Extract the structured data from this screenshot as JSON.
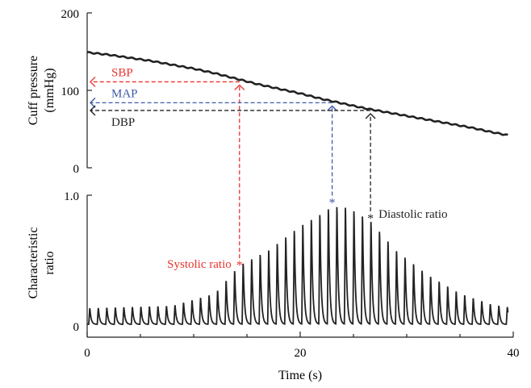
{
  "chart_data": [
    {
      "type": "line",
      "ylabel_line1": "Cuff pressure",
      "ylabel_line2": "(mmHg)",
      "ylim": [
        0,
        200
      ],
      "yticks": [
        "0",
        "100",
        "200"
      ],
      "xlim": [
        0,
        40
      ],
      "series": [
        {
          "x": [
            0,
            2,
            4,
            6,
            8,
            10,
            12,
            14,
            16,
            18,
            20,
            22,
            24,
            26,
            28,
            30,
            32,
            34,
            36,
            38,
            39.5
          ],
          "y": [
            149,
            146,
            142,
            138,
            133,
            128,
            122,
            115,
            108,
            102,
            96,
            89,
            83,
            77,
            72,
            67,
            62,
            57,
            52,
            46,
            42
          ]
        }
      ],
      "markers": [
        {
          "label": "SBP",
          "color": "#e8332f",
          "x": 14.3,
          "y": 111
        },
        {
          "label": "MAP",
          "color": "#3f5aa8",
          "x": 23.0,
          "y": 84
        },
        {
          "label": "DBP",
          "color": "#222222",
          "x": 26.6,
          "y": 74
        }
      ]
    },
    {
      "type": "line",
      "ylabel_line1": "Characteristic",
      "ylabel_line2": "ratio",
      "xlabel": "Time (s)",
      "ylim": [
        0,
        1.0
      ],
      "yticks": [
        "0",
        "1.0"
      ],
      "xlim": [
        0,
        40
      ],
      "xticks": [
        "0",
        "20",
        "40"
      ],
      "envelope": {
        "x": [
          0,
          8,
          12,
          14.3,
          17,
          20,
          22,
          23,
          24.5,
          26.6,
          29,
          32,
          35,
          38,
          39.5
        ],
        "y": [
          0.13,
          0.15,
          0.25,
          0.48,
          0.6,
          0.8,
          0.9,
          0.96,
          0.95,
          0.84,
          0.6,
          0.4,
          0.25,
          0.16,
          0.14
        ]
      },
      "beat_period_s": 0.8,
      "markers": [
        {
          "label": "Systolic ratio",
          "color": "#e8332f",
          "x": 14.3,
          "y": 0.48
        },
        {
          "label": "",
          "color": "#3f5aa8",
          "x": 23.0,
          "y": 0.96
        },
        {
          "label": "Diastolic ratio",
          "color": "#222222",
          "x": 26.6,
          "y": 0.84
        }
      ]
    }
  ]
}
